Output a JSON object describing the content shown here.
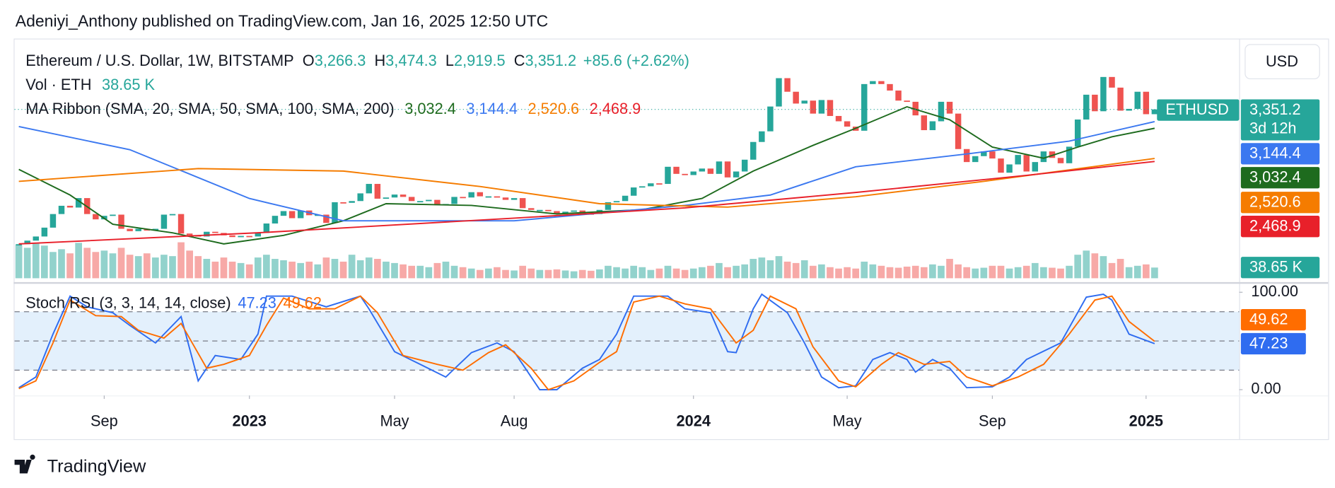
{
  "header": {
    "publisher": "Adeniyi_Anthony published on TradingView.com, Jan 16, 2025 12:50 UTC"
  },
  "currency_button": "USD",
  "footer": {
    "brand": "TradingView"
  },
  "chart_data": {
    "type": "candlestick",
    "symbol_title": "Ethereum / U.S. Dollar, 1W, BITSTAMP",
    "ohlc": [
      {
        "key": "O",
        "value": 3266.3,
        "label": "3,266.3"
      },
      {
        "key": "H",
        "value": 3474.3,
        "label": "3,474.3"
      },
      {
        "key": "L",
        "value": 2919.5,
        "label": "2,919.5"
      },
      {
        "key": "C",
        "value": 3351.2,
        "label": "3,351.2"
      }
    ],
    "change": {
      "value": 85.6,
      "label": "+85.6"
    },
    "change_percent": {
      "value": 2.62,
      "label": "(+2.62%)"
    },
    "symbol_badge": "ETHUSD",
    "countdown": "3d 12h",
    "last": {
      "value": 3351.2,
      "label": "3,351.2"
    },
    "up_color": "#26a69a",
    "down_color": "#ef5350",
    "xlim": [
      -0.5,
      142.9
    ],
    "ylim": [
      450,
      4550
    ],
    "xticks": [
      {
        "value": 10,
        "label": "Sep"
      },
      {
        "value": 27,
        "label": "2023"
      },
      {
        "value": 44,
        "label": "May"
      },
      {
        "value": 58,
        "label": "Aug"
      },
      {
        "value": 79,
        "label": "2024"
      },
      {
        "value": 97,
        "label": "May"
      },
      {
        "value": 114,
        "label": "Sep"
      },
      {
        "value": 132,
        "label": "2025"
      }
    ],
    "close": [
      1070,
      1130,
      1200,
      1350,
      1580,
      1720,
      1690,
      1850,
      1580,
      1490,
      1550,
      1570,
      1330,
      1290,
      1330,
      1300,
      1330,
      1570,
      1580,
      1250,
      1220,
      1200,
      1280,
      1260,
      1220,
      1190,
      1210,
      1200,
      1260,
      1420,
      1550,
      1630,
      1510,
      1640,
      1560,
      1570,
      1430,
      1780,
      1770,
      1800,
      1930,
      2090,
      1840,
      1860,
      1910,
      1870,
      1800,
      1800,
      1820,
      1730,
      1750,
      1870,
      1860,
      1950,
      1880,
      1880,
      1860,
      1820,
      1850,
      1680,
      1650,
      1650,
      1630,
      1580,
      1620,
      1640,
      1590,
      1580,
      1650,
      1780,
      1800,
      1890,
      2030,
      2050,
      2100,
      2090,
      2380,
      2260,
      2240,
      2300,
      2350,
      2260,
      2470,
      2200,
      2300,
      2500,
      2800,
      2980,
      3400,
      3880,
      3650,
      3450,
      3500,
      3280,
      3510,
      3240,
      3150,
      3060,
      2990,
      3780,
      3830,
      3780,
      3670,
      3500,
      3480,
      3250,
      3000,
      3150,
      3480,
      3280,
      2680,
      2460,
      2560,
      2640,
      2520,
      2280,
      2420,
      2580,
      2300,
      2460,
      2640,
      2530,
      2440,
      2720,
      3180,
      3600,
      3320,
      3900,
      3720,
      3330,
      3360,
      3650,
      3270,
      3351.2
    ],
    "volume": {
      "name": "Vol · ETH",
      "last_label": "38.65 K",
      "color": "#26a69a",
      "values": [
        120000,
        110000,
        125000,
        118000,
        95000,
        105000,
        90000,
        128000,
        110000,
        95000,
        100000,
        90000,
        110000,
        85000,
        80000,
        90000,
        75000,
        85000,
        80000,
        130000,
        100000,
        80000,
        70000,
        60000,
        75000,
        60000,
        55000,
        50000,
        75000,
        85000,
        70000,
        65000,
        60000,
        55000,
        60000,
        50000,
        75000,
        70000,
        60000,
        85000,
        65000,
        75000,
        70000,
        60000,
        55000,
        50000,
        45000,
        45000,
        40000,
        55000,
        60000,
        45000,
        40000,
        35000,
        30000,
        35000,
        40000,
        30000,
        28000,
        45000,
        35000,
        30000,
        30000,
        32000,
        28000,
        25000,
        30000,
        27000,
        32000,
        45000,
        40000,
        35000,
        45000,
        40000,
        30000,
        35000,
        45000,
        35000,
        30000,
        35000,
        40000,
        45000,
        55000,
        40000,
        45000,
        50000,
        70000,
        75000,
        65000,
        80000,
        60000,
        55000,
        65000,
        45000,
        50000,
        40000,
        35000,
        40000,
        35000,
        60000,
        50000,
        45000,
        40000,
        38000,
        42000,
        45000,
        40000,
        50000,
        45000,
        70000,
        50000,
        40000,
        35000,
        38000,
        45000,
        45000,
        35000,
        40000,
        45000,
        55000,
        40000,
        38000,
        35000,
        45000,
        85000,
        100000,
        90000,
        80000,
        55000,
        70000,
        40000,
        45000,
        50000,
        38650
      ]
    },
    "ma_ribbon": {
      "name": "MA Ribbon (SMA, 20, SMA, 50, SMA, 100, SMA, 200)",
      "series": [
        {
          "color": "#1e6b1e",
          "last_label": "3,032.4",
          "x": [
            0,
            6,
            11,
            18,
            24,
            31,
            38,
            43,
            53,
            63,
            73,
            80,
            86,
            93,
            98,
            104,
            109,
            114,
            120,
            124,
            128,
            133
          ],
          "values": [
            2336,
            1901,
            1408,
            1263,
            1075,
            1220,
            1466,
            1756,
            1727,
            1582,
            1654,
            1843,
            2307,
            2742,
            3032,
            3395,
            3177,
            2713,
            2525,
            2713,
            2887,
            3032.4
          ]
        },
        {
          "color": "#3b78f0",
          "last_label": "3,144.4",
          "x": [
            0,
            13,
            27,
            38,
            58,
            78,
            88,
            98,
            111,
            123,
            133
          ],
          "values": [
            3061,
            2670,
            1843,
            1466,
            1466,
            1727,
            1901,
            2380,
            2597,
            2815,
            3144.4
          ]
        },
        {
          "color": "#f57c00",
          "last_label": "2,520.6",
          "x": [
            0,
            21,
            38,
            54,
            68,
            83,
            98,
            113,
            133
          ],
          "values": [
            2133,
            2350,
            2307,
            2046,
            1756,
            1698,
            1872,
            2133,
            2520.6
          ]
        },
        {
          "color": "#e8202a",
          "last_label": "2,468.9",
          "x": [
            0,
            28,
            58,
            78,
            98,
            118,
            133
          ],
          "values": [
            1075,
            1263,
            1510,
            1684,
            1945,
            2235,
            2468.9
          ]
        }
      ]
    },
    "stoch_rsi": {
      "name": "Stoch RSI (3, 3, 14, 14, close)",
      "ylim": [
        -6,
        110
      ],
      "yticks": [
        {
          "value": 100,
          "label": "100.00"
        },
        {
          "value": 0,
          "label": "0.00"
        }
      ],
      "levels": [
        20,
        50,
        80
      ],
      "band_color": "#e3f0fc",
      "series": [
        {
          "color": "#2f6cf0",
          "last_label": "47.23",
          "x": [
            0,
            2,
            4,
            6,
            8,
            11,
            13,
            16,
            19,
            21,
            23,
            26,
            28,
            29,
            32,
            36,
            40,
            41,
            44,
            47,
            50,
            53,
            56,
            58,
            61,
            63,
            66,
            68,
            70,
            72,
            76,
            78,
            81,
            83,
            84,
            86,
            87,
            90,
            92,
            94,
            96,
            98,
            100,
            102,
            104,
            105,
            107,
            109,
            111,
            114,
            116,
            118,
            122,
            125,
            127,
            128,
            130,
            133
          ],
          "values": [
            2,
            13,
            57,
            96,
            85,
            79,
            66,
            48,
            75,
            9,
            35,
            31,
            57,
            96,
            96,
            85,
            96,
            83,
            39,
            26,
            13,
            38,
            48,
            39,
            0,
            0,
            22,
            31,
            57,
            96,
            96,
            83,
            79,
            39,
            38,
            83,
            98,
            79,
            48,
            13,
            2,
            4,
            31,
            38,
            31,
            18,
            31,
            22,
            2,
            3,
            13,
            31,
            48,
            95,
            98,
            92,
            57,
            47.23
          ]
        },
        {
          "color": "#ff6d00",
          "last_label": "49.62",
          "x": [
            0,
            2,
            4,
            6,
            9,
            12,
            14,
            17,
            19,
            22,
            24,
            27,
            29,
            31,
            34,
            37,
            40,
            42,
            45,
            49,
            52,
            55,
            57,
            60,
            62,
            65,
            68,
            70,
            72,
            75,
            78,
            81,
            84,
            86,
            88,
            91,
            93,
            96,
            98,
            101,
            103,
            106,
            109,
            111,
            114,
            117,
            120,
            123,
            126,
            128,
            130,
            133
          ],
          "values": [
            1,
            9,
            48,
            92,
            76,
            75,
            61,
            53,
            68,
            22,
            26,
            35,
            66,
            94,
            83,
            83,
            96,
            79,
            35,
            26,
            20,
            38,
            46,
            22,
            0,
            9,
            28,
            39,
            90,
            96,
            88,
            83,
            48,
            61,
            96,
            83,
            44,
            9,
            3,
            26,
            38,
            26,
            29,
            13,
            4,
            13,
            26,
            57,
            92,
            96,
            70,
            49.62
          ]
        }
      ]
    }
  }
}
